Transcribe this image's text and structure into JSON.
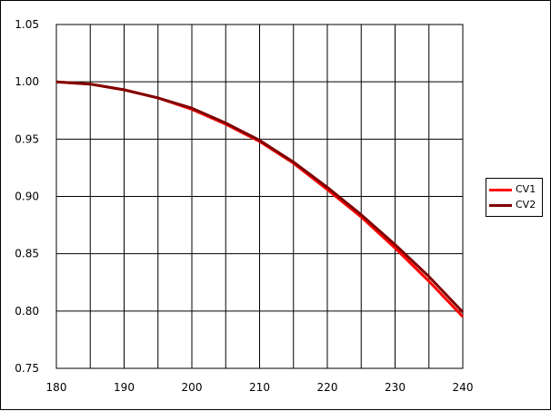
{
  "chart_data": {
    "type": "line",
    "title": "",
    "xlabel": "",
    "ylabel": "",
    "xlim": [
      180,
      240
    ],
    "ylim": [
      0.75,
      1.05
    ],
    "x_ticks": [
      "180",
      "190",
      "200",
      "210",
      "220",
      "230",
      "240"
    ],
    "y_ticks": [
      "0.75",
      "0.80",
      "0.85",
      "0.90",
      "0.95",
      "1.00",
      "1.05"
    ],
    "grid": true,
    "legend_position": "right",
    "series": [
      {
        "name": "CV1",
        "color": "#ff0000",
        "x": [
          180,
          185,
          190,
          195,
          200,
          205,
          210,
          215,
          220,
          225,
          230,
          235,
          240
        ],
        "y": [
          1.0,
          0.998,
          0.993,
          0.986,
          0.976,
          0.963,
          0.948,
          0.929,
          0.906,
          0.882,
          0.855,
          0.826,
          0.795
        ]
      },
      {
        "name": "CV2",
        "color": "#800000",
        "x": [
          180,
          185,
          190,
          195,
          200,
          205,
          210,
          215,
          220,
          225,
          230,
          235,
          240
        ],
        "y": [
          1.0,
          0.998,
          0.993,
          0.986,
          0.977,
          0.964,
          0.949,
          0.93,
          0.908,
          0.884,
          0.858,
          0.83,
          0.799
        ]
      }
    ]
  }
}
